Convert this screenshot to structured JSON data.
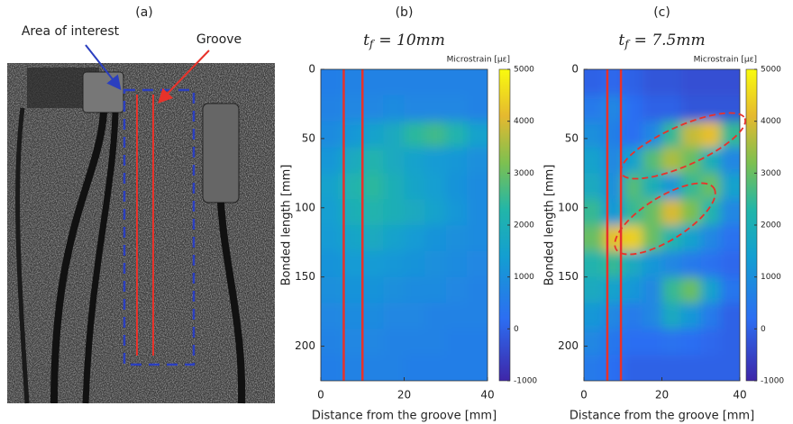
{
  "panel_a": {
    "label": "(a)",
    "annotations": [
      "Area of interest",
      "Groove"
    ]
  },
  "chart_data": [
    {
      "type": "heatmap",
      "label": "(b)",
      "title_var": "t",
      "title_sub": "f",
      "title_rest": "= 10mm",
      "xlabel": "Distance from the groove [mm]",
      "ylabel": "Bonded length [mm]",
      "colorbar_label": "Microstrain [με]",
      "colormap": "parula",
      "xlim": [
        0,
        40
      ],
      "xticks": [
        0,
        20,
        40
      ],
      "ylim": [
        0,
        225
      ],
      "yticks": [
        0,
        50,
        100,
        150,
        200
      ],
      "y_reversed": true,
      "zlim": [
        -1000,
        5000
      ],
      "zticks": [
        -1000,
        0,
        1000,
        2000,
        3000,
        4000,
        5000
      ],
      "groove_lines": [
        5.5,
        10
      ],
      "groove_color": "#e8322a",
      "x": [
        2.5,
        7.5,
        12.5,
        17.5,
        22.5,
        27.5,
        32.5,
        37.5
      ],
      "y": [
        9.4,
        28.1,
        46.9,
        65.6,
        84.4,
        103.1,
        121.9,
        140.6,
        159.4,
        178.1,
        196.9,
        215.6
      ],
      "z": [
        [
          600,
          700,
          700,
          700,
          700,
          700,
          700,
          700
        ],
        [
          700,
          800,
          800,
          900,
          800,
          800,
          800,
          700
        ],
        [
          900,
          1200,
          1500,
          1800,
          2400,
          2600,
          2200,
          1500
        ],
        [
          1200,
          1800,
          2200,
          1800,
          1500,
          1300,
          1200,
          1000
        ],
        [
          1500,
          2200,
          2400,
          2000,
          1600,
          1400,
          1100,
          900
        ],
        [
          1400,
          2000,
          2200,
          2000,
          1800,
          1500,
          1200,
          900
        ],
        [
          1300,
          1600,
          1800,
          1500,
          1300,
          1100,
          1000,
          900
        ],
        [
          1100,
          1300,
          1300,
          1200,
          1100,
          1000,
          900,
          800
        ],
        [
          1000,
          1100,
          1100,
          1000,
          900,
          900,
          800,
          700
        ],
        [
          800,
          900,
          900,
          800,
          800,
          700,
          700,
          700
        ],
        [
          700,
          800,
          800,
          700,
          700,
          700,
          600,
          600
        ],
        [
          600,
          700,
          700,
          700,
          600,
          600,
          600,
          600
        ]
      ]
    },
    {
      "type": "heatmap",
      "label": "(c)",
      "title_var": "t",
      "title_sub": "f",
      "title_rest": "= 7.5mm",
      "xlabel": "Distance from the groove [mm]",
      "ylabel": "Bonded length [mm]",
      "colorbar_label": "Microstrain [με]",
      "colormap": "parula",
      "xlim": [
        0,
        40
      ],
      "xticks": [
        0,
        20,
        40
      ],
      "ylim": [
        0,
        225
      ],
      "yticks": [
        0,
        50,
        100,
        150,
        200
      ],
      "y_reversed": true,
      "zlim": [
        -1000,
        5000
      ],
      "zticks": [
        -1000,
        0,
        1000,
        2000,
        3000,
        4000,
        5000
      ],
      "groove_lines": [
        6,
        9.5
      ],
      "groove_color": "#e8322a",
      "x": [
        2.5,
        7.5,
        12.5,
        17.5,
        22.5,
        27.5,
        32.5,
        37.5
      ],
      "y": [
        9.4,
        28.1,
        46.9,
        65.6,
        84.4,
        103.1,
        121.9,
        140.6,
        159.4,
        178.1,
        196.9,
        215.6
      ],
      "z": [
        [
          0,
          100,
          0,
          -200,
          -200,
          -300,
          -300,
          -300
        ],
        [
          500,
          800,
          200,
          0,
          0,
          -200,
          -200,
          -200
        ],
        [
          1000,
          600,
          200,
          800,
          2500,
          3800,
          4200,
          2500
        ],
        [
          1500,
          800,
          1500,
          2800,
          3600,
          3000,
          2000,
          800
        ],
        [
          1800,
          1000,
          2800,
          2000,
          1200,
          2500,
          3000,
          1500
        ],
        [
          2500,
          1200,
          2500,
          3000,
          4000,
          3200,
          2200,
          800
        ],
        [
          3000,
          4200,
          4400,
          3000,
          2200,
          1500,
          800,
          300
        ],
        [
          2200,
          2500,
          1800,
          1200,
          800,
          500,
          300,
          100
        ],
        [
          1800,
          1500,
          1200,
          800,
          2500,
          3000,
          1500,
          400
        ],
        [
          1200,
          800,
          500,
          800,
          1800,
          1200,
          500,
          0
        ],
        [
          800,
          400,
          200,
          200,
          300,
          200,
          100,
          0
        ],
        [
          500,
          200,
          0,
          0,
          0,
          0,
          0,
          0
        ]
      ]
    }
  ]
}
